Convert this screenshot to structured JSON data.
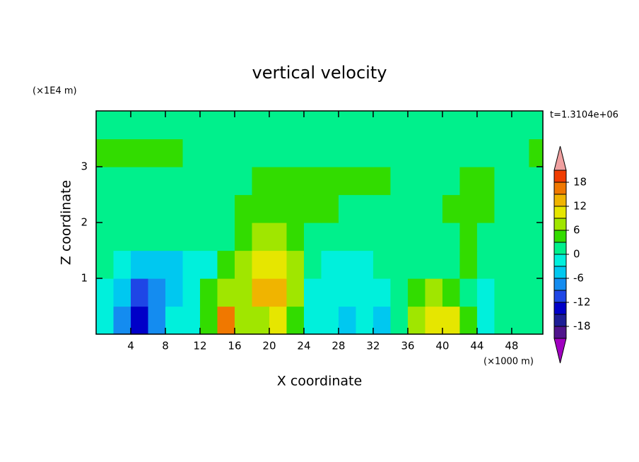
{
  "chart_data": {
    "type": "contour",
    "title": "vertical velocity",
    "xlabel": "X coordinate",
    "ylabel": "Z coordinate",
    "x_unit": "(×1000 m)",
    "y_unit": "(×1E4 m)",
    "time_label": "t=1.3104e+06",
    "xlim": [
      0,
      51.6
    ],
    "ylim": [
      0,
      4
    ],
    "xticks": [
      4,
      8,
      12,
      16,
      20,
      24,
      28,
      32,
      36,
      40,
      44,
      48
    ],
    "yticks": [
      1,
      2,
      3
    ],
    "x": [
      1,
      3,
      5,
      7,
      9,
      11,
      13,
      15,
      17,
      19,
      21,
      23,
      25,
      27,
      29,
      31,
      33,
      35,
      37,
      39,
      41,
      43,
      45,
      47,
      49,
      51
    ],
    "z": [
      0.25,
      0.75,
      1.25,
      1.75,
      2.25,
      2.75,
      3.25,
      3.75
    ],
    "values": [
      [
        -3,
        -9,
        -13,
        -7,
        -3,
        -2,
        4,
        16,
        8,
        6,
        10,
        4,
        -3,
        -2,
        -4,
        -3,
        -4,
        2,
        6,
        10,
        11,
        3,
        -2,
        2,
        1,
        2
      ],
      [
        -3,
        -6,
        -11,
        -9,
        -5,
        -3,
        3,
        8,
        6,
        12,
        12,
        6,
        -2,
        -2,
        -3,
        -2,
        -2,
        0,
        4,
        6,
        5,
        2,
        -1,
        1,
        0,
        2
      ],
      [
        1,
        -2,
        -4,
        -5,
        -4,
        -3,
        -1,
        3,
        6,
        9,
        10,
        7,
        0,
        -1,
        -2,
        -1,
        1,
        2,
        1,
        1,
        2,
        3,
        1,
        1,
        2,
        2
      ],
      [
        1,
        1,
        1,
        1,
        1,
        1,
        1,
        1,
        4,
        6,
        7,
        5,
        2,
        1,
        1,
        1,
        1,
        1,
        1,
        1,
        2,
        4,
        1,
        1,
        1,
        1
      ],
      [
        1,
        1,
        1,
        1,
        1,
        1,
        1,
        1,
        4,
        4,
        4,
        4,
        4,
        4,
        1,
        1,
        1,
        1,
        1,
        1,
        4,
        4,
        4,
        1,
        1,
        1
      ],
      [
        1,
        1,
        1,
        1,
        1,
        1,
        1,
        1,
        1,
        4,
        4,
        4,
        4,
        4,
        4,
        4,
        4,
        1,
        1,
        1,
        1,
        4,
        4,
        1,
        1,
        1
      ],
      [
        4,
        4,
        4,
        4,
        4,
        1,
        1,
        1,
        1,
        1,
        1,
        1,
        1,
        1,
        1,
        1,
        1,
        1,
        1,
        1,
        1,
        1,
        1,
        1,
        1,
        4
      ],
      [
        1,
        1,
        1,
        1,
        1,
        1,
        1,
        1,
        1,
        1,
        1,
        1,
        1,
        1,
        1,
        1,
        1,
        1,
        1,
        1,
        1,
        1,
        1,
        1,
        1,
        1
      ]
    ],
    "colorbar": {
      "levels": [
        -21,
        -18,
        -15,
        -12,
        -9,
        -6,
        -3,
        0,
        3,
        6,
        9,
        12,
        15,
        18,
        21
      ],
      "ticks": [
        18,
        12,
        6,
        0,
        -6,
        -12,
        -18
      ],
      "colors": [
        "#a000c0",
        "#50148c",
        "#1e1e96",
        "#0000c8",
        "#1e46e6",
        "#148cf0",
        "#00c8f0",
        "#00f0dc",
        "#00f08c",
        "#32dc00",
        "#a0e600",
        "#e6e600",
        "#f0b400",
        "#f07800",
        "#f03c00",
        "#f0a0a0"
      ]
    }
  }
}
